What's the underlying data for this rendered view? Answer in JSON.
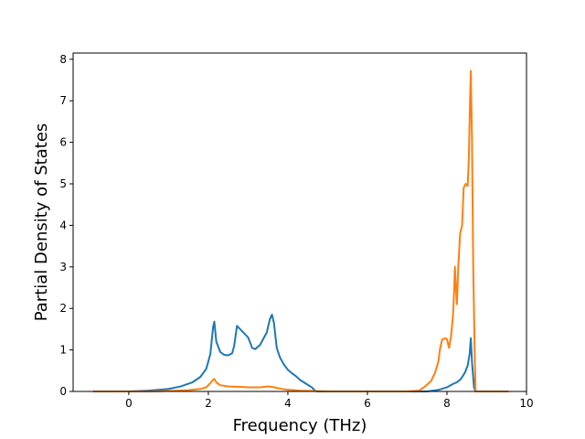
{
  "chart_data": {
    "type": "line",
    "title": "",
    "xlabel": "Frequency (THz)",
    "ylabel": "Partial Density of States",
    "xlim": [
      -1.4,
      10.0
    ],
    "ylim": [
      0,
      8.15
    ],
    "xticks": [
      0,
      2,
      4,
      6,
      8,
      10
    ],
    "yticks": [
      0,
      1,
      2,
      3,
      4,
      5,
      6,
      7,
      8
    ],
    "grid": false,
    "legend": "none",
    "series": [
      {
        "color": "#1f77b4",
        "points": [
          [
            -0.9,
            0
          ],
          [
            0.0,
            0.0
          ],
          [
            0.5,
            0.02
          ],
          [
            1.0,
            0.06
          ],
          [
            1.3,
            0.12
          ],
          [
            1.6,
            0.22
          ],
          [
            1.8,
            0.35
          ],
          [
            1.95,
            0.55
          ],
          [
            2.05,
            0.9
          ],
          [
            2.12,
            1.55
          ],
          [
            2.15,
            1.68
          ],
          [
            2.2,
            1.2
          ],
          [
            2.3,
            0.95
          ],
          [
            2.4,
            0.88
          ],
          [
            2.5,
            0.87
          ],
          [
            2.6,
            0.92
          ],
          [
            2.65,
            1.1
          ],
          [
            2.72,
            1.58
          ],
          [
            2.8,
            1.5
          ],
          [
            2.9,
            1.4
          ],
          [
            3.0,
            1.3
          ],
          [
            3.05,
            1.18
          ],
          [
            3.1,
            1.05
          ],
          [
            3.18,
            1.02
          ],
          [
            3.3,
            1.12
          ],
          [
            3.4,
            1.3
          ],
          [
            3.47,
            1.42
          ],
          [
            3.5,
            1.55
          ],
          [
            3.55,
            1.75
          ],
          [
            3.6,
            1.85
          ],
          [
            3.65,
            1.65
          ],
          [
            3.72,
            1.05
          ],
          [
            3.8,
            0.82
          ],
          [
            3.9,
            0.65
          ],
          [
            4.0,
            0.52
          ],
          [
            4.1,
            0.44
          ],
          [
            4.2,
            0.37
          ],
          [
            4.3,
            0.28
          ],
          [
            4.4,
            0.22
          ],
          [
            4.5,
            0.16
          ],
          [
            4.6,
            0.1
          ],
          [
            4.68,
            0.02
          ],
          [
            4.75,
            0.0
          ],
          [
            5.0,
            0.0
          ],
          [
            7.0,
            0.0
          ],
          [
            7.5,
            0.0
          ],
          [
            7.8,
            0.04
          ],
          [
            8.0,
            0.1
          ],
          [
            8.15,
            0.18
          ],
          [
            8.25,
            0.22
          ],
          [
            8.35,
            0.3
          ],
          [
            8.45,
            0.45
          ],
          [
            8.52,
            0.62
          ],
          [
            8.57,
            0.9
          ],
          [
            8.6,
            1.28
          ],
          [
            8.63,
            0.7
          ],
          [
            8.68,
            0.1
          ],
          [
            8.72,
            0.0
          ],
          [
            9.0,
            0.0
          ],
          [
            9.55,
            0.0
          ]
        ]
      },
      {
        "color": "#ff7f0e",
        "points": [
          [
            -0.9,
            0
          ],
          [
            0.5,
            0.0
          ],
          [
            1.0,
            0.01
          ],
          [
            1.5,
            0.03
          ],
          [
            1.8,
            0.06
          ],
          [
            1.95,
            0.1
          ],
          [
            2.05,
            0.2
          ],
          [
            2.12,
            0.28
          ],
          [
            2.15,
            0.3
          ],
          [
            2.2,
            0.22
          ],
          [
            2.3,
            0.15
          ],
          [
            2.5,
            0.12
          ],
          [
            2.8,
            0.11
          ],
          [
            3.0,
            0.1
          ],
          [
            3.3,
            0.1
          ],
          [
            3.5,
            0.12
          ],
          [
            3.6,
            0.11
          ],
          [
            3.8,
            0.07
          ],
          [
            4.0,
            0.04
          ],
          [
            4.3,
            0.02
          ],
          [
            4.6,
            0.01
          ],
          [
            5.0,
            0.0
          ],
          [
            6.0,
            0.0
          ],
          [
            7.0,
            0.0
          ],
          [
            7.3,
            0.02
          ],
          [
            7.45,
            0.12
          ],
          [
            7.6,
            0.25
          ],
          [
            7.7,
            0.45
          ],
          [
            7.78,
            0.7
          ],
          [
            7.83,
            1.05
          ],
          [
            7.88,
            1.25
          ],
          [
            7.95,
            1.28
          ],
          [
            8.0,
            1.26
          ],
          [
            8.05,
            1.05
          ],
          [
            8.1,
            1.3
          ],
          [
            8.15,
            1.8
          ],
          [
            8.18,
            2.4
          ],
          [
            8.2,
            3.0
          ],
          [
            8.23,
            2.4
          ],
          [
            8.25,
            2.1
          ],
          [
            8.28,
            2.9
          ],
          [
            8.33,
            3.8
          ],
          [
            8.38,
            4.0
          ],
          [
            8.42,
            4.9
          ],
          [
            8.47,
            5.0
          ],
          [
            8.52,
            4.95
          ],
          [
            8.55,
            5.6
          ],
          [
            8.58,
            7.0
          ],
          [
            8.6,
            7.72
          ],
          [
            8.63,
            6.0
          ],
          [
            8.66,
            3.0
          ],
          [
            8.7,
            0.8
          ],
          [
            8.72,
            0.0
          ],
          [
            9.0,
            0.0
          ],
          [
            9.55,
            0.0
          ]
        ]
      }
    ]
  }
}
